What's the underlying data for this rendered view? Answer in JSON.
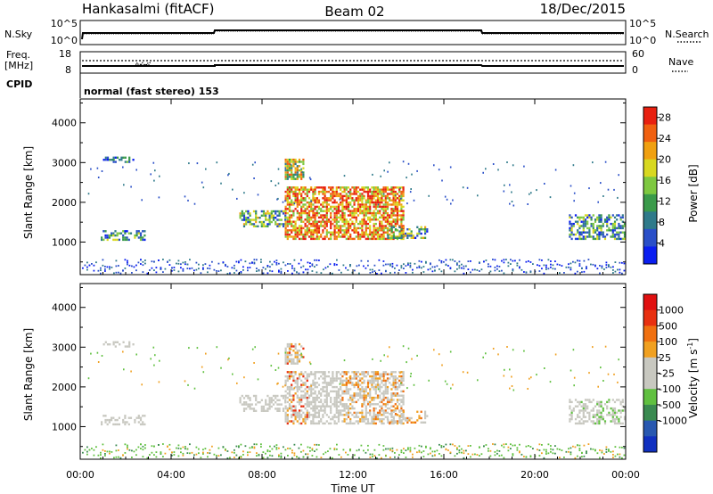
{
  "header": {
    "station": "Hankasalmi (fitACF)",
    "beam": "Beam 02",
    "date": "18/Dec/2015"
  },
  "noise_panel": {
    "left_label": "N.Sky",
    "right_label": "N.Search",
    "left_ticks": [
      "10^5",
      "10^0"
    ],
    "right_ticks": [
      "10^5",
      "10^0"
    ]
  },
  "freq_panel": {
    "left_label_1": "Freq.",
    "left_label_2": "[MHz]",
    "right_label": "Nave",
    "left_ticks": [
      "18",
      "8"
    ],
    "right_ticks": [
      "60",
      "0"
    ]
  },
  "cpid_panel": {
    "label": "CPID",
    "text": "normal (fast stereo) 153"
  },
  "chart_data": [
    {
      "type": "heatmap",
      "name": "power",
      "ylabel": "Slant Range [km]",
      "ylim": [
        180,
        4600
      ],
      "yticks": [
        "1000",
        "2000",
        "3000",
        "4000"
      ],
      "xlim_hours": [
        0,
        24
      ],
      "colorbar": {
        "label": "Power [dB]",
        "ticks": [
          "4",
          "8",
          "12",
          "16",
          "20",
          "24",
          "28"
        ],
        "range": [
          0,
          30
        ],
        "colors": [
          "#0a1ef0",
          "#2a4fc8",
          "#2f7a8a",
          "#3a9a4a",
          "#7ec840",
          "#d8d820",
          "#f0a010",
          "#f06010",
          "#e82010"
        ]
      },
      "echo_regions": [
        {
          "t": [
            1.0,
            2.4
          ],
          "r": [
            3000,
            3150
          ],
          "level": 0.25
        },
        {
          "t": [
            0.9,
            2.8
          ],
          "r": [
            1050,
            1300
          ],
          "level": 0.35
        },
        {
          "t": [
            7.0,
            9.0
          ],
          "r": [
            1400,
            1800
          ],
          "level": 0.4
        },
        {
          "t": [
            9.0,
            14.2
          ],
          "r": [
            1100,
            2400
          ],
          "level": 0.75
        },
        {
          "t": [
            9.0,
            9.8
          ],
          "r": [
            2600,
            3100
          ],
          "level": 0.55
        },
        {
          "t": [
            13.5,
            15.3
          ],
          "r": [
            1100,
            1400
          ],
          "level": 0.4
        },
        {
          "t": [
            21.5,
            24.0
          ],
          "r": [
            1100,
            1700
          ],
          "level": 0.35
        }
      ]
    },
    {
      "type": "heatmap",
      "name": "velocity",
      "ylabel": "Slant Range [km]",
      "xlabel": "Time UT",
      "ylim": [
        180,
        4600
      ],
      "yticks": [
        "1000",
        "2000",
        "3000",
        "4000"
      ],
      "xticks": [
        "00:00",
        "04:00",
        "08:00",
        "12:00",
        "16:00",
        "20:00",
        "00:00"
      ],
      "xlim_hours": [
        0,
        24
      ],
      "colorbar": {
        "label": "Velocity [m s",
        "label_sup": "-1",
        "label_end": "]",
        "ticks": [
          "1000",
          "500",
          "100",
          "25",
          "-25",
          "-100",
          "-500",
          "-1000"
        ],
        "colors": [
          "#1030c0",
          "#2858b0",
          "#3a8a50",
          "#60c040",
          "#c8c8c0",
          "#c8c8c0",
          "#f0a020",
          "#f07010",
          "#e83010",
          "#e01010"
        ]
      }
    }
  ]
}
